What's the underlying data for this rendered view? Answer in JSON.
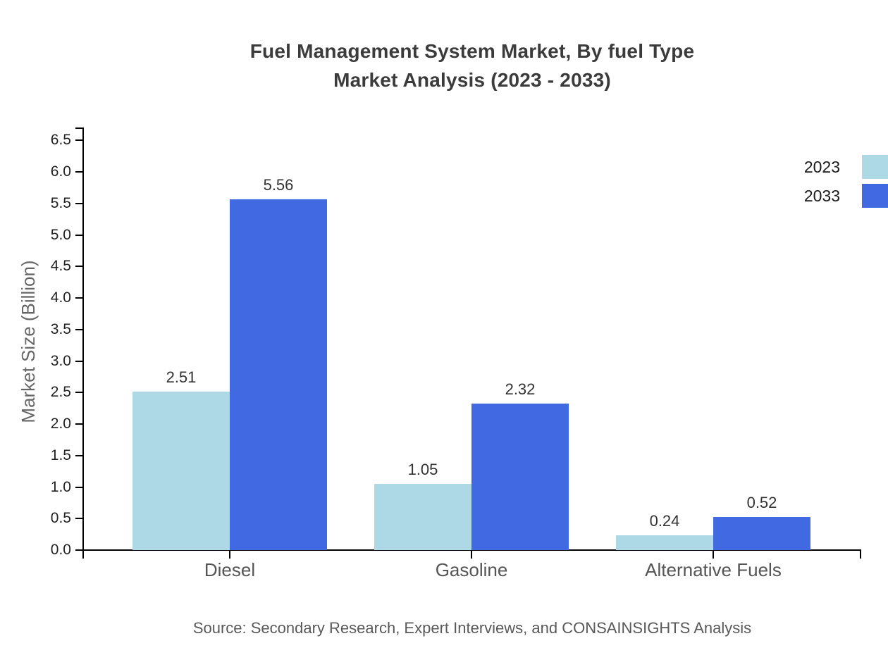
{
  "title": {
    "line1": "Fuel Management System Market, By fuel Type",
    "line2": "Market Analysis (2023 - 2033)"
  },
  "source_note": "Source: Secondary Research, Expert Interviews, and CONSAINSIGHTS Analysis",
  "legend": {
    "items": [
      {
        "label": "2023",
        "color": "#ADD8E6"
      },
      {
        "label": "2033",
        "color": "#4169E1"
      }
    ]
  },
  "chart_data": {
    "type": "bar",
    "title": "Fuel Management System Market, By fuel Type — Market Analysis (2023 - 2033)",
    "categories": [
      "Diesel",
      "Gasoline",
      "Alternative Fuels"
    ],
    "series": [
      {
        "name": "2023",
        "color": "#ADD8E6",
        "values": [
          2.51,
          1.05,
          0.24
        ],
        "labels": [
          "2.51",
          "1.05",
          "0.24"
        ]
      },
      {
        "name": "2033",
        "color": "#4169E1",
        "values": [
          5.56,
          2.32,
          0.52
        ],
        "labels": [
          "5.56",
          "2.32",
          "0.52"
        ]
      }
    ],
    "xlabel": "",
    "ylabel": "Market Size (Billion)",
    "ylim": [
      0,
      6.69
    ],
    "ytick_step": 0.5,
    "yticks": [
      "0.0",
      "0.5",
      "1.0",
      "1.5",
      "2.0",
      "2.5",
      "3.0",
      "3.5",
      "4.0",
      "4.5",
      "5.0",
      "5.5",
      "6.0",
      "6.5"
    ],
    "grid": false,
    "legend_position": "top-right",
    "value_labels": true
  }
}
